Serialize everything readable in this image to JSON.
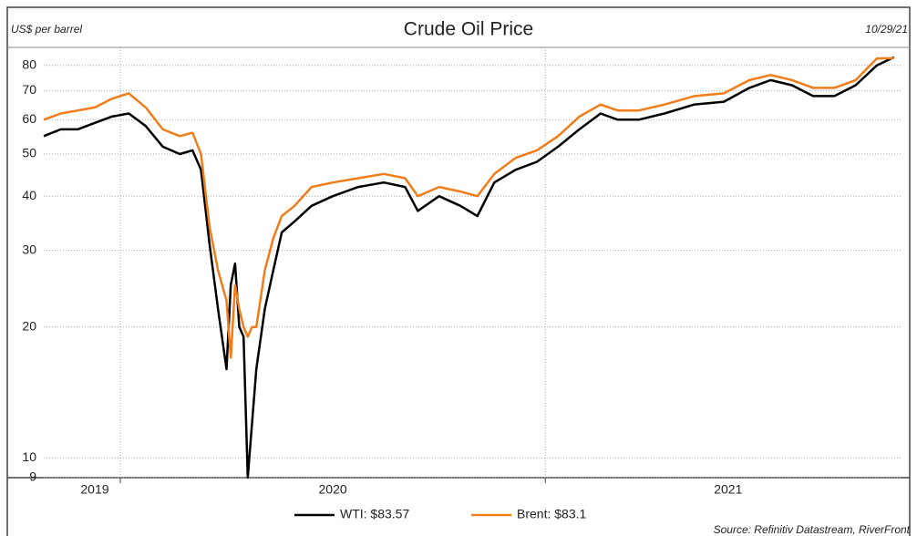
{
  "chart_data": {
    "type": "line",
    "title": "Crude Oil Price",
    "y_label": "US$ per barrel",
    "date": "10/29/21",
    "source": "Source: Refinitiv Datastream, RiverFront",
    "log_scale": true,
    "grid": true,
    "legend": "bottom",
    "xlim": [
      2019.82,
      2021.84
    ],
    "xticks": [
      {
        "value": 2019.94,
        "label": "2019"
      },
      {
        "value": 2020.5,
        "label": "2020"
      },
      {
        "value": 2021.43,
        "label": "2021"
      }
    ],
    "x_gridlines": [
      2020,
      2021
    ],
    "ylim": [
      9,
      88
    ],
    "yticks": [
      9,
      10,
      20,
      30,
      40,
      50,
      60,
      70,
      80
    ],
    "x": [
      2019.82,
      2019.86,
      2019.9,
      2019.94,
      2019.98,
      2020.02,
      2020.06,
      2020.1,
      2020.14,
      2020.17,
      2020.19,
      2020.21,
      2020.23,
      2020.25,
      2020.26,
      2020.27,
      2020.28,
      2020.29,
      2020.3,
      2020.31,
      2020.32,
      2020.34,
      2020.36,
      2020.38,
      2020.41,
      2020.45,
      2020.5,
      2020.56,
      2020.62,
      2020.67,
      2020.7,
      2020.75,
      2020.8,
      2020.84,
      2020.88,
      2020.93,
      2020.98,
      2021.03,
      2021.08,
      2021.13,
      2021.17,
      2021.22,
      2021.28,
      2021.35,
      2021.42,
      2021.48,
      2021.53,
      2021.58,
      2021.63,
      2021.68,
      2021.73,
      2021.78,
      2021.82
    ],
    "series": [
      {
        "name": "WTI: $83.57",
        "color": "#000000",
        "values": [
          55,
          57,
          57,
          59,
          61,
          62,
          58,
          52,
          50,
          51,
          46,
          31,
          22,
          16,
          25,
          28,
          20,
          19,
          9,
          12,
          16,
          22,
          27,
          33,
          35,
          38,
          40,
          42,
          43,
          42,
          37,
          40,
          38,
          36,
          43,
          46,
          48,
          52,
          57,
          62,
          60,
          60,
          62,
          65,
          66,
          71,
          74,
          72,
          68,
          68,
          72,
          80,
          83.57
        ]
      },
      {
        "name": "Brent: $83.1",
        "color": "#f07c1a",
        "values": [
          60,
          62,
          63,
          64,
          67,
          69,
          64,
          57,
          55,
          56,
          50,
          34,
          27,
          23,
          17,
          25,
          22,
          20,
          19,
          20,
          20,
          27,
          32,
          36,
          38,
          42,
          43,
          44,
          45,
          44,
          40,
          42,
          41,
          40,
          45,
          49,
          51,
          55,
          61,
          65,
          63,
          63,
          65,
          68,
          69,
          74,
          76,
          74,
          71,
          71,
          74,
          83,
          83.1
        ]
      }
    ]
  }
}
